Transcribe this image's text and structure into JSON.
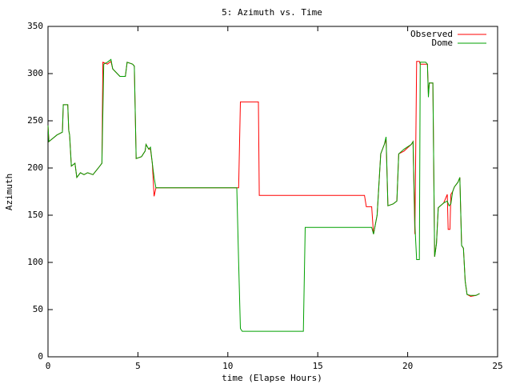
{
  "chart_data": {
    "type": "line",
    "title": "5: Azimuth vs. Time",
    "x_label": "time (Elapse Hours)",
    "y_label": "Azimuth",
    "xlim": [
      0,
      25
    ],
    "xticks": [
      0,
      5,
      10,
      15,
      20,
      25
    ],
    "ylim": [
      0,
      350
    ],
    "yticks": [
      0,
      50,
      100,
      150,
      200,
      250,
      300,
      350
    ],
    "grid": false,
    "legend": "top-right",
    "series": [
      {
        "name": "Observed",
        "color": "#ff0000",
        "x": [
          0,
          0.05,
          0.5,
          0.8,
          0.85,
          1.1,
          1.15,
          1.2,
          1.3,
          1.5,
          1.6,
          1.8,
          2.0,
          2.2,
          2.5,
          2.8,
          3.0,
          3.05,
          3.3,
          3.5,
          3.6,
          4.0,
          4.3,
          4.4,
          4.7,
          4.8,
          4.9,
          5.2,
          5.4,
          5.45,
          5.6,
          5.7,
          5.8,
          5.9,
          6.0,
          10.6,
          10.7,
          11.7,
          11.75,
          17.6,
          17.7,
          18.0,
          18.1,
          18.3,
          18.5,
          18.7,
          18.8,
          18.9,
          19.2,
          19.4,
          19.5,
          19.8,
          20.2,
          20.3,
          20.4,
          20.5,
          20.65,
          20.7,
          21.0,
          21.1,
          21.15,
          21.2,
          21.4,
          21.5,
          21.6,
          21.7,
          22.0,
          22.2,
          22.25,
          22.35,
          22.4,
          22.5,
          22.6,
          22.8,
          22.9,
          23.0,
          23.1,
          23.2,
          23.3,
          23.5,
          23.8,
          24.0
        ],
        "values": [
          245,
          228,
          235,
          238,
          267,
          267,
          240,
          235,
          202,
          205,
          190,
          195,
          193,
          195,
          193,
          200,
          205,
          312,
          310,
          313,
          305,
          297,
          297,
          312,
          310,
          308,
          210,
          212,
          218,
          225,
          220,
          220,
          205,
          170,
          179,
          179,
          270,
          270,
          171,
          171,
          159,
          159,
          130,
          150,
          215,
          225,
          230,
          160,
          162,
          165,
          215,
          218,
          225,
          228,
          130,
          313,
          313,
          310,
          310,
          310,
          278,
          290,
          290,
          106,
          120,
          158,
          163,
          172,
          135,
          135,
          172,
          175,
          180,
          185,
          190,
          118,
          115,
          80,
          66,
          64,
          65,
          67
        ]
      },
      {
        "name": "Dome",
        "color": "#00a000",
        "x": [
          0,
          0.05,
          0.5,
          0.8,
          0.85,
          1.1,
          1.15,
          1.2,
          1.3,
          1.5,
          1.6,
          1.8,
          2.0,
          2.2,
          2.5,
          2.8,
          3.0,
          3.1,
          3.3,
          3.5,
          3.6,
          4.0,
          4.3,
          4.4,
          4.7,
          4.8,
          4.9,
          5.2,
          5.4,
          5.45,
          5.6,
          5.7,
          5.8,
          5.9,
          6.0,
          10.5,
          10.6,
          10.7,
          10.8,
          14.2,
          14.3,
          18.0,
          18.1,
          18.3,
          18.5,
          18.7,
          18.8,
          18.9,
          19.2,
          19.4,
          19.5,
          19.8,
          20.2,
          20.3,
          20.4,
          20.5,
          20.65,
          20.7,
          21.0,
          21.1,
          21.15,
          21.2,
          21.4,
          21.5,
          21.6,
          21.7,
          22.0,
          22.2,
          22.3,
          22.4,
          22.5,
          22.6,
          22.8,
          22.9,
          23.0,
          23.1,
          23.2,
          23.3,
          23.5,
          23.8,
          24.0
        ],
        "values": [
          245,
          228,
          235,
          238,
          267,
          267,
          240,
          235,
          202,
          205,
          190,
          195,
          193,
          195,
          193,
          200,
          205,
          310,
          312,
          315,
          305,
          297,
          297,
          312,
          310,
          308,
          210,
          212,
          218,
          225,
          220,
          222,
          205,
          190,
          179,
          179,
          100,
          30,
          27,
          27,
          137,
          137,
          130,
          150,
          215,
          225,
          233,
          160,
          162,
          165,
          215,
          220,
          225,
          228,
          140,
          103,
          103,
          312,
          312,
          310,
          275,
          290,
          290,
          106,
          120,
          158,
          163,
          165,
          160,
          162,
          175,
          180,
          185,
          190,
          118,
          115,
          80,
          66,
          65,
          65,
          67
        ]
      }
    ]
  }
}
